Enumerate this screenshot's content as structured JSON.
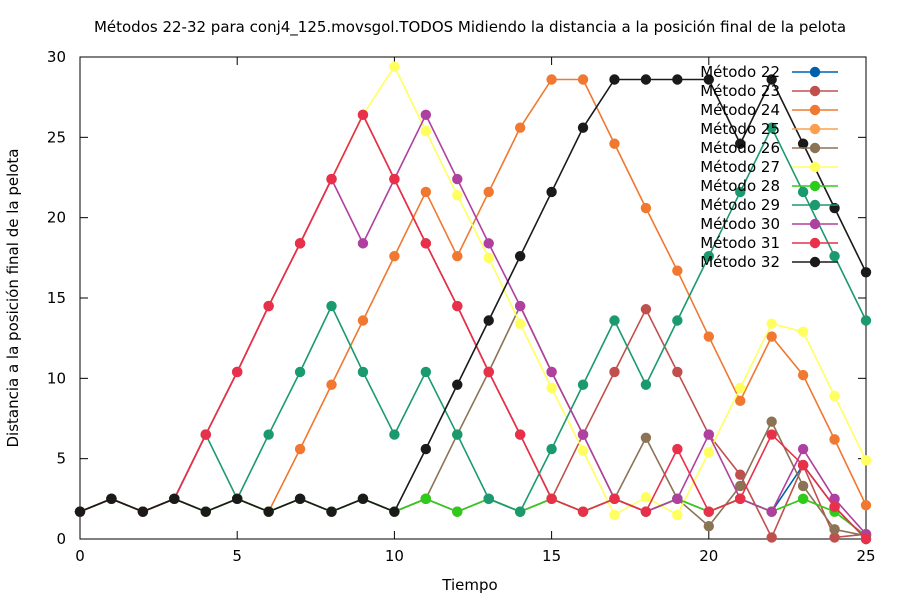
{
  "chart_data": {
    "type": "line",
    "title": "Métodos 22-32 para conj4_125.movsgol.TODOS Midiendo la distancia a la posición final de la pelota",
    "xlabel": "Tiempo",
    "ylabel": "Distancia a la posición final de la pelota",
    "xlim": [
      0,
      25
    ],
    "ylim": [
      0,
      30
    ],
    "xticks": [
      "0",
      "5",
      "10",
      "15",
      "20",
      "25"
    ],
    "yticks": [
      "0",
      "5",
      "10",
      "15",
      "20",
      "25",
      "30"
    ],
    "grid": false,
    "legend": "top-right",
    "x": [
      0,
      1,
      2,
      3,
      4,
      5,
      6,
      7,
      8,
      9,
      10,
      11,
      12,
      13,
      14,
      15,
      16,
      17,
      18,
      19,
      20,
      21,
      22,
      23,
      24,
      25
    ],
    "series": [
      {
        "name": "Método 22",
        "color": "#0060ad",
        "values": [
          1.7,
          2.5,
          1.7,
          2.5,
          1.7,
          2.5,
          1.7,
          2.5,
          1.7,
          2.5,
          1.7,
          2.5,
          1.7,
          2.5,
          1.7,
          2.5,
          1.7,
          2.5,
          1.7,
          2.5,
          1.7,
          2.5,
          1.7,
          4.6,
          2.0,
          0.0
        ]
      },
      {
        "name": "Método 23",
        "color": "#c0504d",
        "values": [
          1.7,
          2.5,
          1.7,
          2.5,
          6.5,
          10.4,
          14.5,
          18.4,
          22.4,
          26.4,
          22.4,
          18.4,
          14.5,
          10.4,
          6.5,
          2.5,
          6.5,
          10.4,
          14.3,
          10.4,
          6.5,
          4.0,
          0.1,
          4.6,
          0.1,
          0.3
        ]
      },
      {
        "name": "Método 24",
        "color": "#f07830",
        "values": [
          1.7,
          2.5,
          1.7,
          2.5,
          1.7,
          2.5,
          1.7,
          5.6,
          9.6,
          13.6,
          17.6,
          21.6,
          17.6,
          21.6,
          25.6,
          28.6,
          28.6,
          24.6,
          20.6,
          16.7,
          12.6,
          8.6,
          12.6,
          10.2,
          6.2,
          2.1
        ]
      },
      {
        "name": "Método 25",
        "color": "#f8a050",
        "values": [
          1.7,
          2.5,
          1.7,
          2.5,
          1.7,
          2.5,
          1.7,
          2.5,
          1.7,
          2.5,
          1.7,
          2.5,
          1.7,
          2.5,
          1.7,
          2.5,
          1.7,
          2.5,
          1.7,
          2.5,
          1.7,
          2.5,
          1.7,
          2.5,
          1.7,
          0.2
        ]
      },
      {
        "name": "Método 26",
        "color": "#8b7355",
        "values": [
          1.7,
          2.5,
          1.7,
          2.5,
          1.7,
          2.5,
          1.7,
          2.5,
          1.7,
          2.5,
          1.7,
          2.5,
          6.5,
          10.4,
          14.5,
          10.4,
          6.5,
          2.5,
          6.3,
          2.5,
          0.8,
          3.3,
          7.3,
          3.3,
          0.6,
          0.2
        ]
      },
      {
        "name": "Método 27",
        "color": "#ffff60",
        "values": [
          1.7,
          2.5,
          1.7,
          2.5,
          6.5,
          10.4,
          14.5,
          18.4,
          22.4,
          26.4,
          29.4,
          25.4,
          21.4,
          17.5,
          13.4,
          9.4,
          5.5,
          1.5,
          2.6,
          1.5,
          5.4,
          9.4,
          13.4,
          12.9,
          8.9,
          4.9
        ]
      },
      {
        "name": "Método 28",
        "color": "#2ecc1a",
        "values": [
          1.7,
          2.5,
          1.7,
          2.5,
          1.7,
          2.5,
          1.7,
          2.5,
          1.7,
          2.5,
          1.7,
          2.5,
          1.7,
          2.5,
          1.7,
          2.5,
          1.7,
          2.5,
          1.7,
          2.5,
          1.7,
          2.5,
          1.7,
          2.5,
          1.7,
          0.2
        ]
      },
      {
        "name": "Método 29",
        "color": "#1a9a6e",
        "values": [
          1.7,
          2.5,
          1.7,
          2.5,
          6.5,
          2.5,
          6.5,
          10.4,
          14.5,
          10.4,
          6.5,
          10.4,
          6.5,
          2.5,
          1.7,
          5.6,
          9.6,
          13.6,
          9.6,
          13.6,
          17.6,
          21.6,
          25.6,
          21.6,
          17.6,
          13.6
        ]
      },
      {
        "name": "Método 30",
        "color": "#b040a0",
        "values": [
          1.7,
          2.5,
          1.7,
          2.5,
          6.5,
          10.4,
          14.5,
          18.4,
          22.4,
          18.4,
          22.4,
          26.4,
          22.4,
          18.4,
          14.5,
          10.4,
          6.5,
          2.5,
          1.7,
          2.5,
          6.5,
          2.5,
          1.7,
          5.6,
          2.5,
          0.3
        ]
      },
      {
        "name": "Método 31",
        "color": "#e8304a",
        "values": [
          1.7,
          2.5,
          1.7,
          2.5,
          6.5,
          10.4,
          14.5,
          18.4,
          22.4,
          26.4,
          22.4,
          18.4,
          14.5,
          10.4,
          6.5,
          2.5,
          1.7,
          2.5,
          1.7,
          5.6,
          1.7,
          2.5,
          6.5,
          4.6,
          2.0,
          0.0
        ]
      },
      {
        "name": "Método 32",
        "color": "#1a1a1a",
        "values": [
          1.7,
          2.5,
          1.7,
          2.5,
          1.7,
          2.5,
          1.7,
          2.5,
          1.7,
          2.5,
          1.7,
          5.6,
          9.6,
          13.6,
          17.6,
          21.6,
          25.6,
          28.6,
          28.6,
          28.6,
          28.6,
          24.6,
          28.6,
          24.6,
          20.6,
          16.6
        ]
      }
    ]
  }
}
